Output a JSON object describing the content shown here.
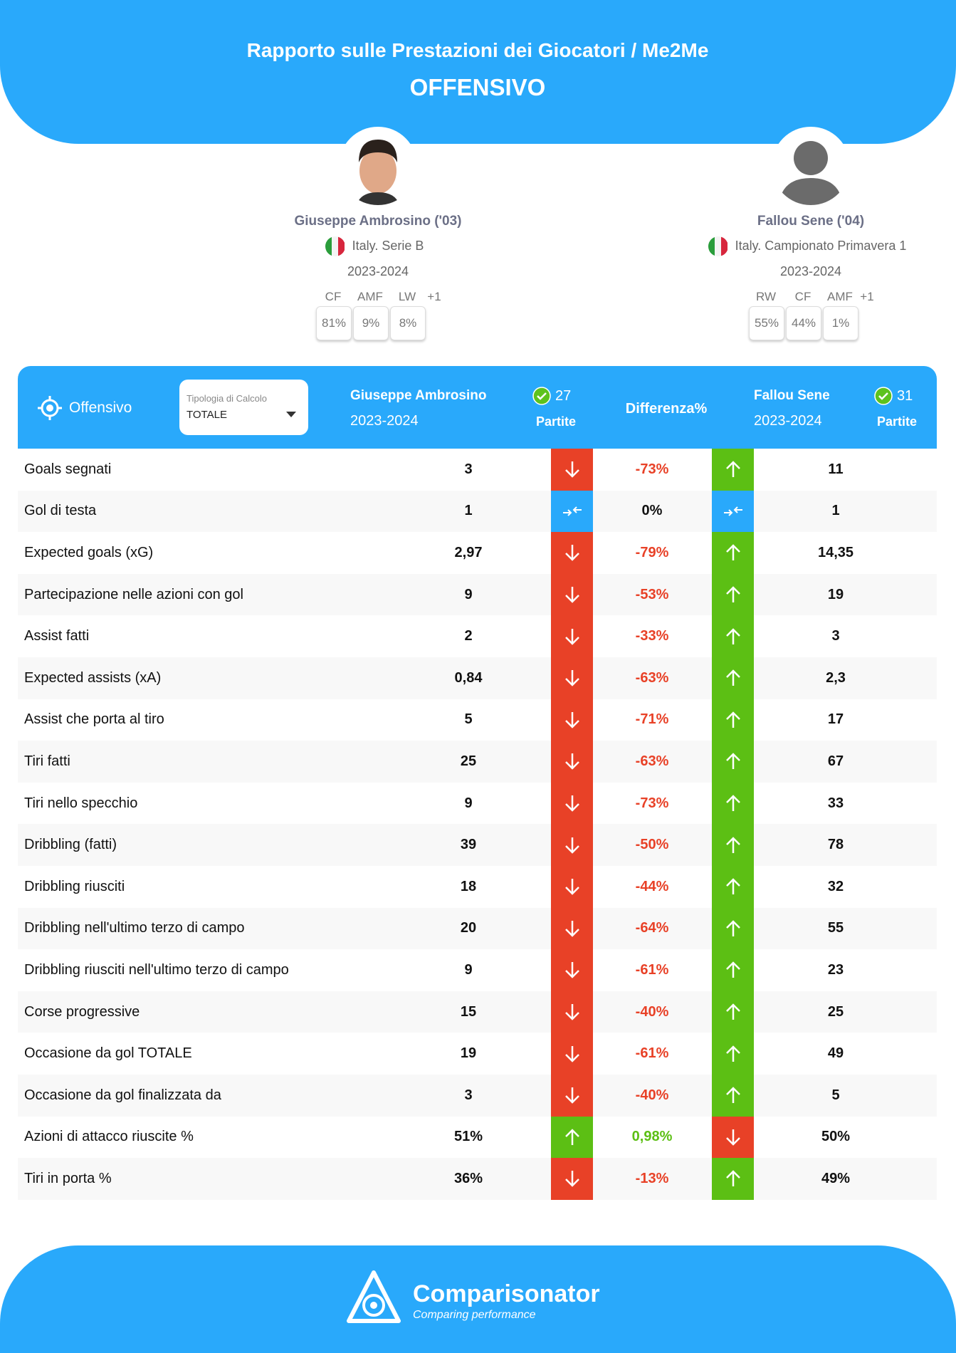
{
  "header": {
    "title": "Rapporto sulle Prestazioni dei Giocatori / Me2Me",
    "subtitle": "OFFENSIVO"
  },
  "players": [
    {
      "name": "Giuseppe Ambrosino ('03)",
      "league": "Italy. Serie B",
      "season": "2023-2024",
      "positions": [
        {
          "pos": "CF",
          "pct": "81%"
        },
        {
          "pos": "AMF",
          "pct": "9%"
        },
        {
          "pos": "LW",
          "pct": "8%"
        }
      ],
      "extra": "+1"
    },
    {
      "name": "Fallou Sene ('04)",
      "league": "Italy. Campionato Primavera 1",
      "season": "2023-2024",
      "positions": [
        {
          "pos": "RW",
          "pct": "55%"
        },
        {
          "pos": "CF",
          "pct": "44%"
        },
        {
          "pos": "AMF",
          "pct": "1%"
        }
      ],
      "extra": "+1"
    }
  ],
  "table_header": {
    "section": "Offensivo",
    "calc_label": "Tipologia di Calcolo",
    "calc_value": "TOTALE",
    "player1": {
      "name": "Giuseppe Ambrosino",
      "season": "2023-2024",
      "matches": "27",
      "matches_label": "Partite"
    },
    "diff_label": "Differenza%",
    "player2": {
      "name": "Fallou Sene",
      "season": "2023-2024",
      "matches": "31",
      "matches_label": "Partite"
    }
  },
  "rows": [
    [
      "Goals segnati",
      "3",
      "-73%",
      "11"
    ],
    [
      "Gol di testa",
      "1",
      "0%",
      "1"
    ],
    [
      "Expected goals (xG)",
      "2,97",
      "-79%",
      "14,35"
    ],
    [
      "Partecipazione nelle azioni con gol",
      "9",
      "-53%",
      "19"
    ],
    [
      "Assist fatti",
      "2",
      "-33%",
      "3"
    ],
    [
      "Expected assists (xA)",
      "0,84",
      "-63%",
      "2,3"
    ],
    [
      "Assist che porta al tiro",
      "5",
      "-71%",
      "17"
    ],
    [
      "Tiri fatti",
      "25",
      "-63%",
      "67"
    ],
    [
      "Tiri nello specchio",
      "9",
      "-73%",
      "33"
    ],
    [
      "Dribbling (fatti)",
      "39",
      "-50%",
      "78"
    ],
    [
      "Dribbling riusciti",
      "18",
      "-44%",
      "32"
    ],
    [
      "Dribbling nell'ultimo terzo di campo",
      "20",
      "-64%",
      "55"
    ],
    [
      "Dribbling riusciti nell'ultimo terzo di campo",
      "9",
      "-61%",
      "23"
    ],
    [
      "Corse progressive",
      "15",
      "-40%",
      "25"
    ],
    [
      "Occasione da gol TOTALE",
      "19",
      "-61%",
      "49"
    ],
    [
      "Occasione da gol finalizzata da",
      "3",
      "-40%",
      "5"
    ],
    [
      "Azioni di attacco riuscite %",
      "51%",
      "0,98%",
      "50%"
    ],
    [
      "Tiri in porta %",
      "36%",
      "-13%",
      "49%"
    ]
  ],
  "footer": {
    "brand": "Comparisonator",
    "tagline": "Comparing performance"
  }
}
